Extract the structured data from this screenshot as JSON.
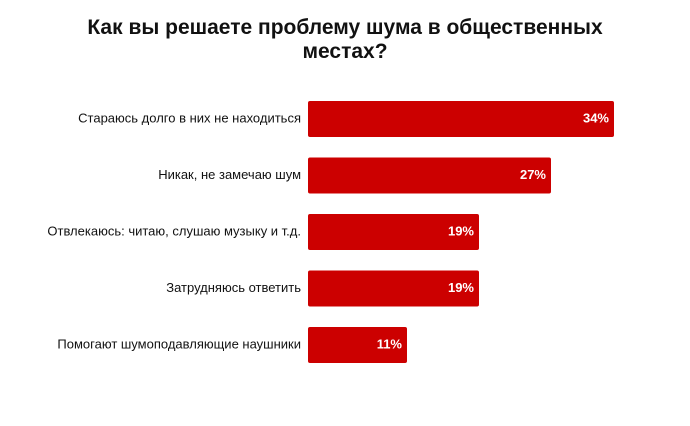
{
  "chart_data": {
    "type": "bar",
    "orientation": "horizontal",
    "title": "Как вы решаете проблему шума в общественных местах?",
    "categories": [
      "Стараюсь долго в них не находиться",
      "Никак, не замечаю шум",
      "Отвлекаюсь: читаю, слушаю музыку и т.д.",
      "Затрудняюсь ответить",
      "Помогают шумоподавляющие наушники"
    ],
    "values": [
      34,
      27,
      19,
      19,
      11
    ],
    "value_labels": [
      "34%",
      "27%",
      "19%",
      "19%",
      "11%"
    ],
    "color": "#cc0000"
  }
}
